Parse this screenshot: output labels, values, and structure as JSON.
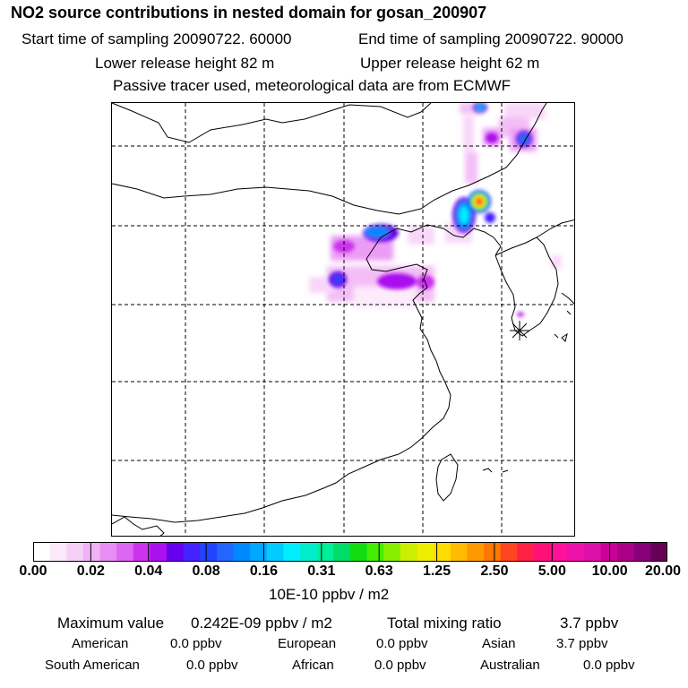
{
  "header": {
    "title": "NO2 source contributions in nested domain for gosan_200907",
    "start_time": "Start time of sampling 20090722. 60000",
    "end_time": "End time of sampling 20090722. 90000",
    "lower_release": "Lower release height   82 m",
    "upper_release": "Upper release height   62 m",
    "tracer_note": "Passive tracer used, meteorological data are from ECMWF"
  },
  "legend": {
    "labels": [
      "0.00",
      "0.02",
      "0.04",
      "0.08",
      "0.16",
      "0.31",
      "0.63",
      "1.25",
      "2.50",
      "5.00",
      "10.00",
      "20.00"
    ],
    "colors": [
      "#ffffff",
      "#fbe8fb",
      "#f7d0f7",
      "#f1b3f5",
      "#e88df5",
      "#dd66f2",
      "#cc33ee",
      "#aa11ee",
      "#6600ee",
      "#4422ff",
      "#2244ff",
      "#2266ff",
      "#0088ff",
      "#00a8ff",
      "#00ccff",
      "#00eeff",
      "#00eecc",
      "#00ee99",
      "#00dd66",
      "#11dd11",
      "#44ee00",
      "#88ee00",
      "#ccee00",
      "#eeee00",
      "#ffdd00",
      "#ffbb00",
      "#ff9900",
      "#ff7700",
      "#ff4422",
      "#ff2244",
      "#ff1177",
      "#ff1199",
      "#ee11aa",
      "#dd11aa",
      "#cc0099",
      "#aa0088",
      "#880077",
      "#660055"
    ],
    "unit": "10E-10 ppbv / m2"
  },
  "stats": {
    "max_label": "Maximum value",
    "max_value": "0.242E-09 ppbv / m2",
    "total_label": "Total mixing ratio",
    "total_value": "3.7 ppbv",
    "regions": [
      {
        "name": "American",
        "value": "0.0 ppbv"
      },
      {
        "name": "European",
        "value": "0.0 ppbv"
      },
      {
        "name": "Asian",
        "value": "3.7 ppbv"
      },
      {
        "name": "South American",
        "value": "0.0 ppbv"
      },
      {
        "name": "African",
        "value": "0.0 ppbv"
      },
      {
        "name": "Australian",
        "value": "0.0 ppbv"
      }
    ]
  }
}
